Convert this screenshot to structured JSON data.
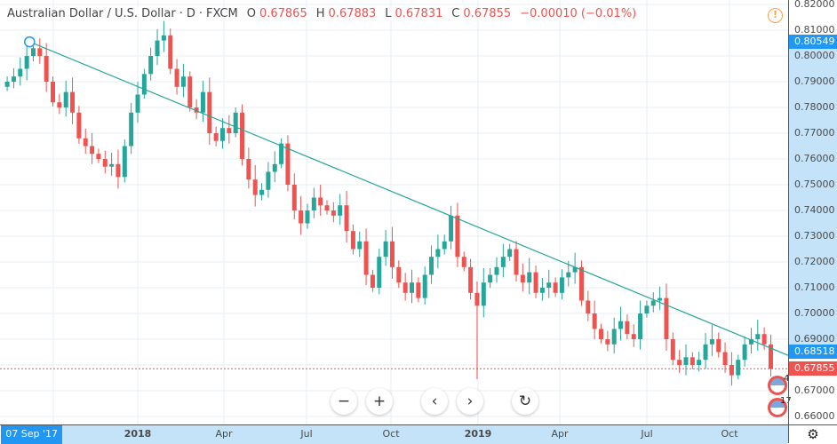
{
  "header": {
    "symbol": "Australian Dollar / U.S. Dollar",
    "sep1": "·",
    "interval": "D",
    "sep2": "·",
    "exchange": "FXCM",
    "o_label": "O",
    "open": "0.67865",
    "h_label": "H",
    "high": "0.67883",
    "l_label": "L",
    "low": "0.67831",
    "c_label": "C",
    "close": "0.67855",
    "change": "−0.00010 (−0.01%)"
  },
  "colors": {
    "up": "#26a69a",
    "down": "#ef5350",
    "trendline": "#26a69a",
    "highlight": "#c4e2f8",
    "tag_blue": "#2196f3",
    "tag_red": "#ef5350",
    "alert": "#f7a14d"
  },
  "price_axis": {
    "ticks": [
      "0.82000",
      "0.81000",
      "0.80000",
      "0.79000",
      "0.78000",
      "0.77000",
      "0.76000",
      "0.75000",
      "0.74000",
      "0.73000",
      "0.72000",
      "0.71000",
      "0.70000",
      "0.69000",
      "0.67000",
      "0.66000"
    ],
    "tags": {
      "trend_start": "0.80549",
      "trend_end": "0.68518",
      "last": "0.67855"
    }
  },
  "time_axis": {
    "selected": "07 Sep '17",
    "labels": [
      "2018",
      "Apr",
      "Jul",
      "Oct",
      "2019",
      "Apr",
      "Jul",
      "Oct"
    ]
  },
  "nav": {
    "zoom_out": "−",
    "zoom_in": "+",
    "left": "‹",
    "right": "›",
    "reset": "↻"
  },
  "events": [
    {
      "icon": "us-flag-event-icon",
      "count": "4"
    },
    {
      "icon": "us-flag-event-icon",
      "count": "17"
    }
  ],
  "alert_icon": "!",
  "settings_icon": "⚙",
  "chart_data": {
    "type": "candlestick",
    "interval_days": 7,
    "start": "2017-08-14",
    "ylim": [
      0.66,
      0.82
    ],
    "grid": true,
    "close": [
      0.79,
      0.792,
      0.795,
      0.8,
      0.803,
      0.8,
      0.79,
      0.782,
      0.78,
      0.786,
      0.778,
      0.768,
      0.765,
      0.762,
      0.76,
      0.757,
      0.758,
      0.753,
      0.765,
      0.778,
      0.785,
      0.793,
      0.8,
      0.806,
      0.808,
      0.795,
      0.788,
      0.792,
      0.78,
      0.778,
      0.786,
      0.77,
      0.767,
      0.772,
      0.77,
      0.778,
      0.76,
      0.752,
      0.746,
      0.748,
      0.755,
      0.758,
      0.766,
      0.75,
      0.74,
      0.735,
      0.74,
      0.745,
      0.742,
      0.74,
      0.738,
      0.742,
      0.732,
      0.725,
      0.728,
      0.715,
      0.71,
      0.722,
      0.728,
      0.718,
      0.712,
      0.708,
      0.712,
      0.706,
      0.715,
      0.722,
      0.725,
      0.728,
      0.738,
      0.722,
      0.718,
      0.708,
      0.703,
      0.712,
      0.715,
      0.718,
      0.722,
      0.725,
      0.715,
      0.712,
      0.716,
      0.708,
      0.71,
      0.712,
      0.708,
      0.714,
      0.716,
      0.718,
      0.705,
      0.7,
      0.694,
      0.69,
      0.688,
      0.694,
      0.697,
      0.692,
      0.69,
      0.7,
      0.703,
      0.705,
      0.706,
      0.69,
      0.682,
      0.68,
      0.683,
      0.68,
      0.682,
      0.688,
      0.69,
      0.685,
      0.68,
      0.676,
      0.682,
      0.688,
      0.69,
      0.692,
      0.688,
      0.67855
    ],
    "notable_low": {
      "date": "2019-01-03",
      "value": 0.6745
    },
    "trendline": [
      [
        "2017-09-07",
        0.80549
      ],
      [
        "2019-11-20",
        0.68518
      ]
    ],
    "last_price": 0.67855
  }
}
